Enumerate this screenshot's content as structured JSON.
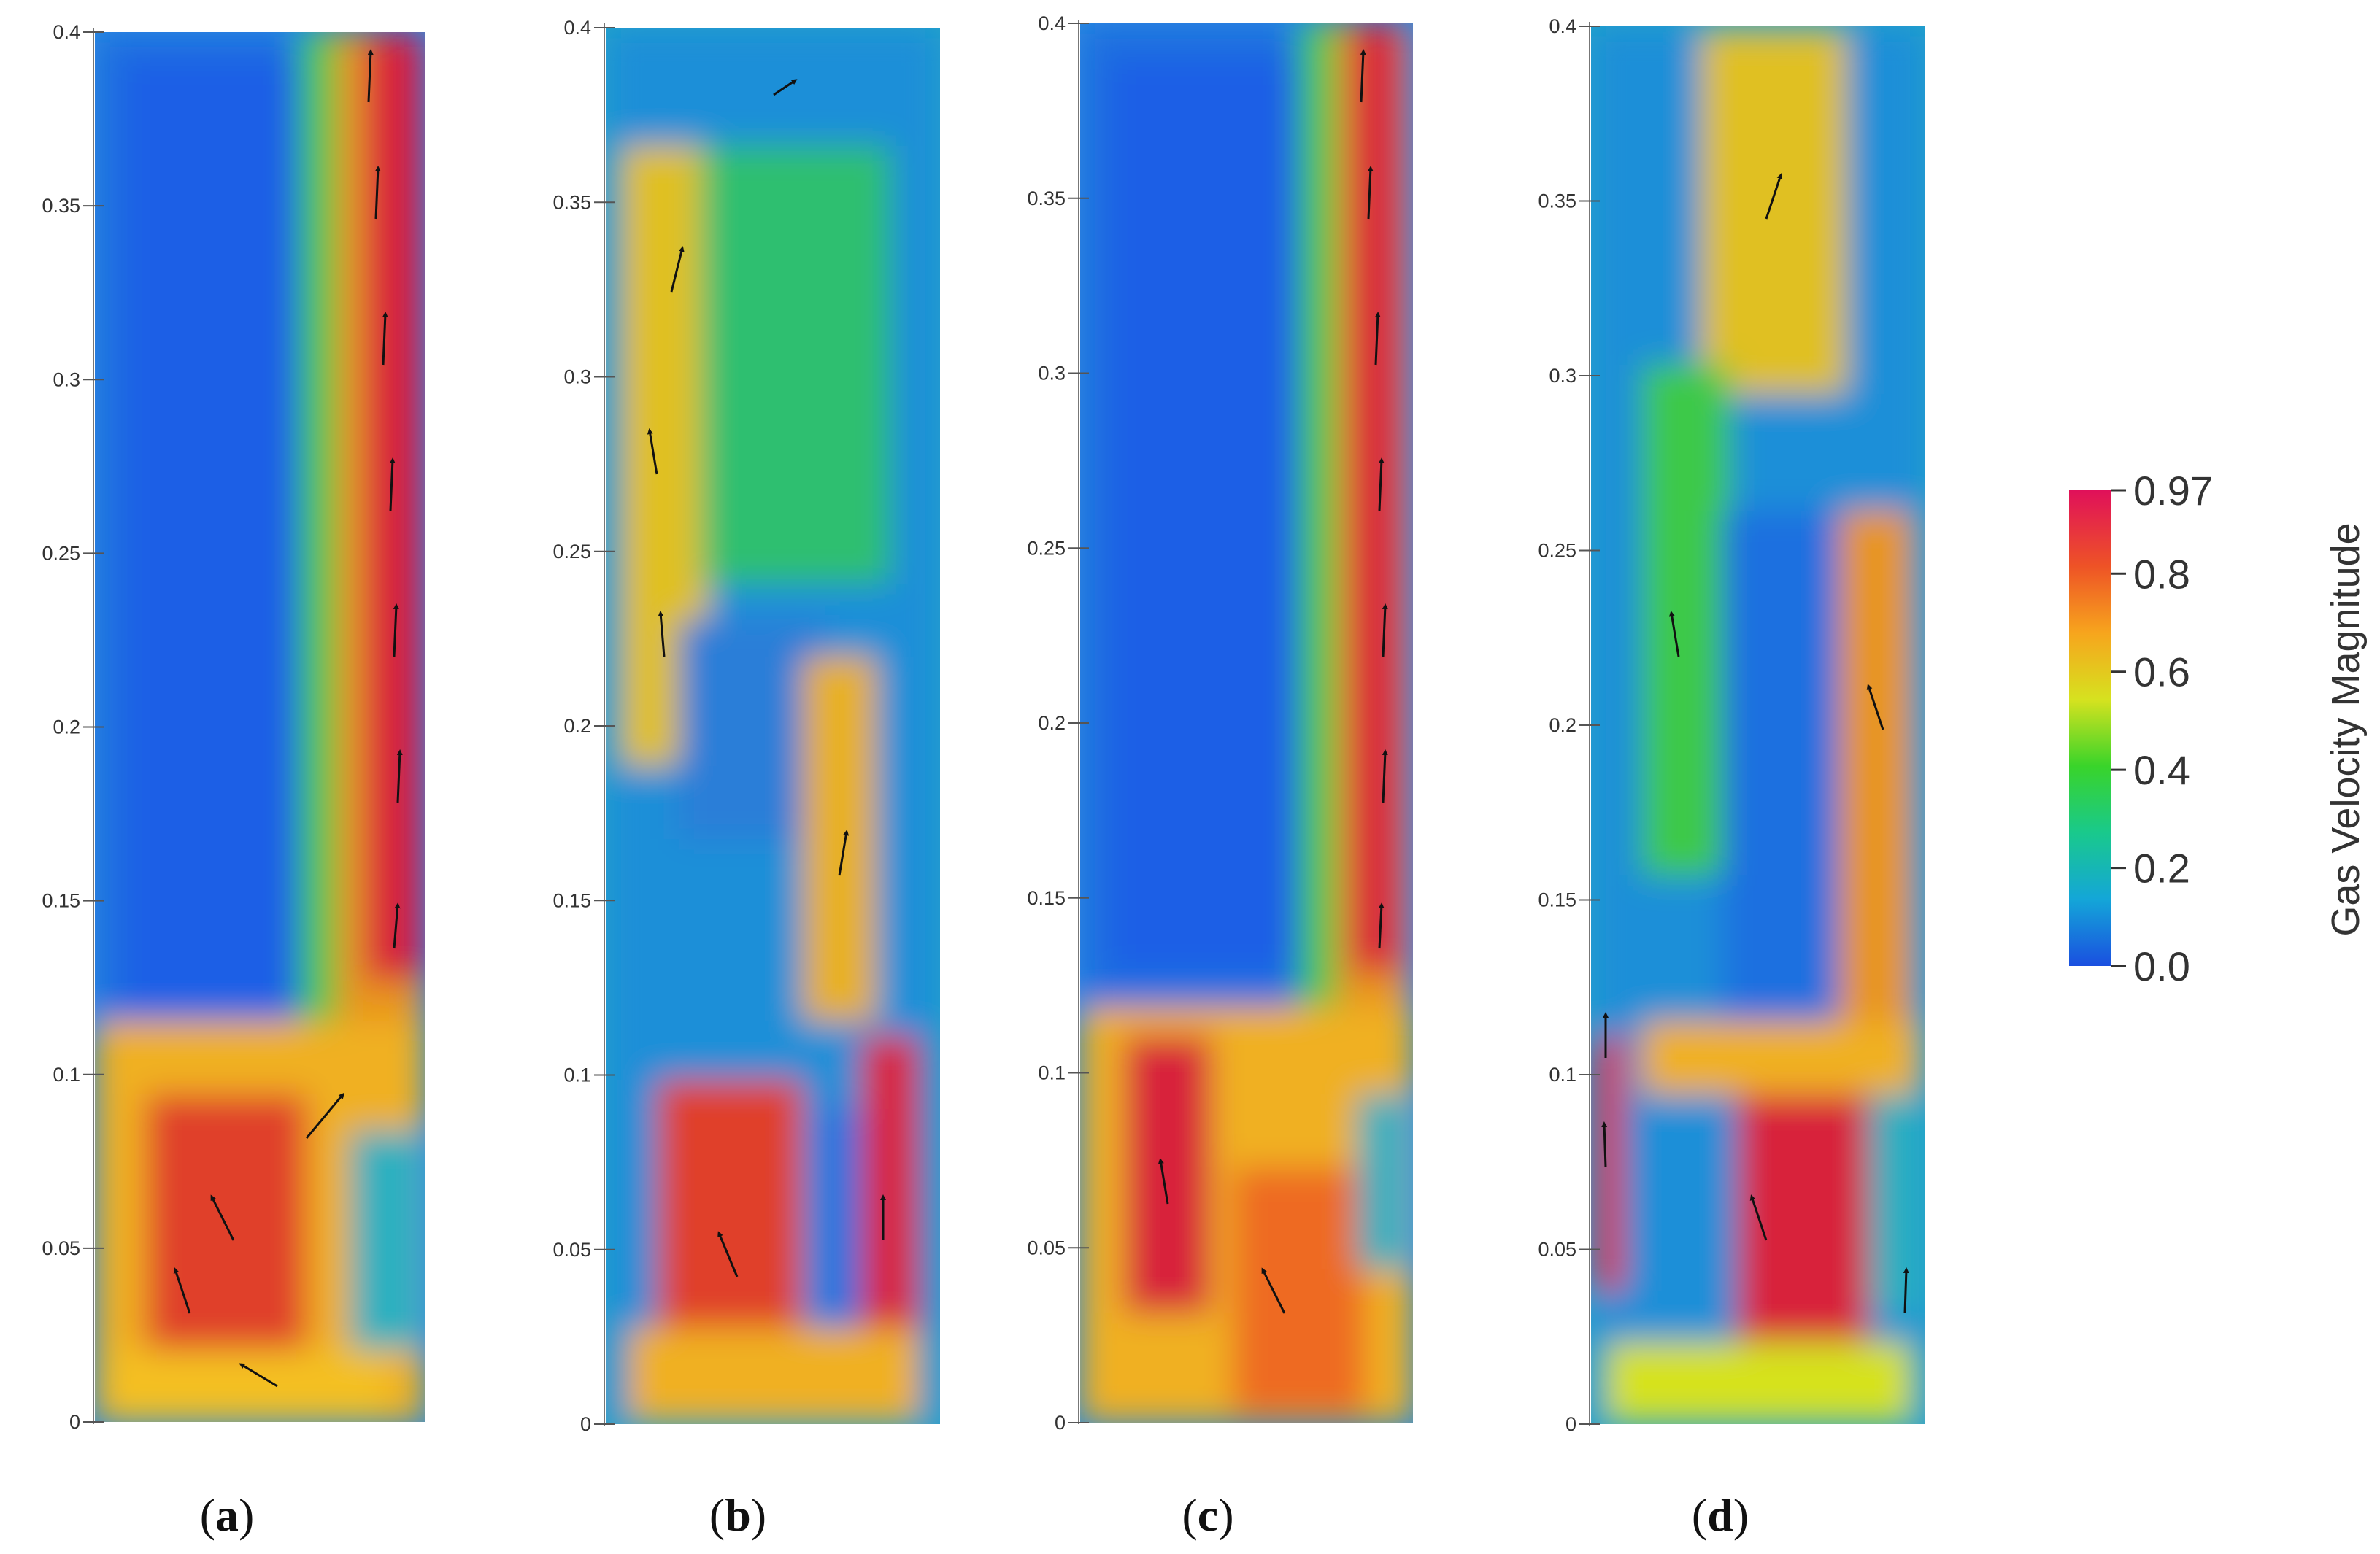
{
  "chart_data": [
    {
      "type": "heatmap",
      "panel_label": "a",
      "ylim": [
        0,
        0.4
      ],
      "y_ticks": [
        "0",
        "0.05",
        "0.1",
        "0.15",
        "0.2",
        "0.25",
        "0.3",
        "0.35",
        "0.4"
      ],
      "description_of_field": "jet"
    },
    {
      "type": "heatmap",
      "panel_label": "b",
      "ylim": [
        0,
        0.4
      ],
      "y_ticks": [
        "0",
        "0.05",
        "0.1",
        "0.15",
        "0.2",
        "0.25",
        "0.3",
        "0.35",
        "0.4"
      ]
    },
    {
      "type": "heatmap",
      "panel_label": "c",
      "ylim": [
        0,
        0.4
      ],
      "y_ticks": [
        "0",
        "0.05",
        "0.1",
        "0.15",
        "0.2",
        "0.25",
        "0.3",
        "0.35",
        "0.4"
      ]
    },
    {
      "type": "heatmap",
      "panel_label": "d",
      "ylim": [
        0,
        0.4
      ],
      "y_ticks": [
        "0",
        "0.05",
        "0.1",
        "0.15",
        "0.2",
        "0.25",
        "0.3",
        "0.35",
        "0.4"
      ]
    }
  ],
  "colorbar": {
    "title": "Gas Velocity Magnitude",
    "min": 0.0,
    "max": 0.97,
    "tick_values": [
      0.97,
      0.8,
      0.6,
      0.4,
      0.2,
      0.0
    ],
    "tick_labels": [
      "0.97",
      "0.8",
      "0.6",
      "0.4",
      "0.2",
      "0.0"
    ],
    "colors": [
      "#1a4fe0",
      "#14a6d8",
      "#19c98c",
      "#39d42a",
      "#d6e21f",
      "#f7a51d",
      "#ee5326",
      "#e0105a"
    ]
  }
}
